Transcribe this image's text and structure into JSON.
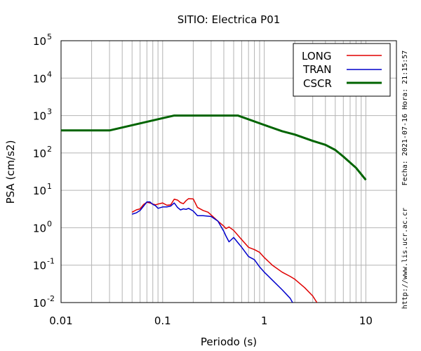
{
  "chart_data": {
    "type": "line",
    "title": "SITIO: Electrica P01",
    "xlabel": "Periodo (s)",
    "ylabel": "PSA (cm/s2)",
    "xscale": "log",
    "yscale": "log",
    "xlim": [
      0.01,
      20
    ],
    "ylim": [
      0.01,
      100000
    ],
    "xticks": [
      {
        "value": 0.01,
        "label": "0.01"
      },
      {
        "value": 0.1,
        "label": "0.1"
      },
      {
        "value": 1,
        "label": "1"
      },
      {
        "value": 10,
        "label": "10"
      }
    ],
    "yticks": [
      {
        "value": 0.01,
        "base": "10",
        "exp": "-2"
      },
      {
        "value": 0.1,
        "base": "10",
        "exp": "-1"
      },
      {
        "value": 1,
        "base": "10",
        "exp": "0"
      },
      {
        "value": 10,
        "base": "10",
        "exp": "1"
      },
      {
        "value": 100,
        "base": "10",
        "exp": "2"
      },
      {
        "value": 1000,
        "base": "10",
        "exp": "3"
      },
      {
        "value": 10000,
        "base": "10",
        "exp": "4"
      },
      {
        "value": 100000,
        "base": "10",
        "exp": "5"
      }
    ],
    "grid": true,
    "legend_position": "top-right",
    "series": [
      {
        "name": "LONG",
        "color": "#e00000",
        "line_width": 1.5,
        "points": [
          [
            0.05,
            2.6
          ],
          [
            0.055,
            3.0
          ],
          [
            0.06,
            3.2
          ],
          [
            0.065,
            4.2
          ],
          [
            0.07,
            4.8
          ],
          [
            0.075,
            4.6
          ],
          [
            0.08,
            4.3
          ],
          [
            0.085,
            4.1
          ],
          [
            0.09,
            4.3
          ],
          [
            0.1,
            4.6
          ],
          [
            0.11,
            4.0
          ],
          [
            0.12,
            4.1
          ],
          [
            0.13,
            5.8
          ],
          [
            0.14,
            5.5
          ],
          [
            0.15,
            4.7
          ],
          [
            0.16,
            4.4
          ],
          [
            0.17,
            5.3
          ],
          [
            0.18,
            6.0
          ],
          [
            0.2,
            5.9
          ],
          [
            0.22,
            3.5
          ],
          [
            0.25,
            2.9
          ],
          [
            0.28,
            2.6
          ],
          [
            0.3,
            2.2
          ],
          [
            0.35,
            1.5
          ],
          [
            0.4,
            1.1
          ],
          [
            0.42,
            0.95
          ],
          [
            0.45,
            1.05
          ],
          [
            0.5,
            0.85
          ],
          [
            0.6,
            0.48
          ],
          [
            0.7,
            0.3
          ],
          [
            0.8,
            0.26
          ],
          [
            0.9,
            0.22
          ],
          [
            1.0,
            0.16
          ],
          [
            1.2,
            0.1
          ],
          [
            1.5,
            0.065
          ],
          [
            1.8,
            0.05
          ],
          [
            2.0,
            0.042
          ],
          [
            2.5,
            0.025
          ],
          [
            3.0,
            0.015
          ],
          [
            3.3,
            0.01
          ]
        ]
      },
      {
        "name": "TRAN",
        "color": "#0000cc",
        "line_width": 1.5,
        "points": [
          [
            0.05,
            2.3
          ],
          [
            0.055,
            2.5
          ],
          [
            0.06,
            2.9
          ],
          [
            0.065,
            3.8
          ],
          [
            0.07,
            4.9
          ],
          [
            0.075,
            4.9
          ],
          [
            0.08,
            4.2
          ],
          [
            0.085,
            3.9
          ],
          [
            0.09,
            3.3
          ],
          [
            0.1,
            3.6
          ],
          [
            0.11,
            3.6
          ],
          [
            0.12,
            3.8
          ],
          [
            0.13,
            4.6
          ],
          [
            0.14,
            3.5
          ],
          [
            0.15,
            3.0
          ],
          [
            0.16,
            3.2
          ],
          [
            0.17,
            3.1
          ],
          [
            0.18,
            3.3
          ],
          [
            0.2,
            2.8
          ],
          [
            0.22,
            2.1
          ],
          [
            0.25,
            2.1
          ],
          [
            0.3,
            2.0
          ],
          [
            0.35,
            1.5
          ],
          [
            0.4,
            0.8
          ],
          [
            0.42,
            0.6
          ],
          [
            0.45,
            0.42
          ],
          [
            0.5,
            0.55
          ],
          [
            0.55,
            0.4
          ],
          [
            0.6,
            0.3
          ],
          [
            0.7,
            0.17
          ],
          [
            0.8,
            0.14
          ],
          [
            0.9,
            0.09
          ],
          [
            1.0,
            0.065
          ],
          [
            1.2,
            0.04
          ],
          [
            1.5,
            0.022
          ],
          [
            1.8,
            0.013
          ],
          [
            1.9,
            0.01
          ]
        ]
      },
      {
        "name": "CSCR",
        "color": "#006400",
        "line_width": 3,
        "points": [
          [
            0.01,
            400
          ],
          [
            0.03,
            400
          ],
          [
            0.1,
            850
          ],
          [
            0.13,
            1000
          ],
          [
            0.55,
            1000
          ],
          [
            1.0,
            560
          ],
          [
            1.5,
            380
          ],
          [
            2.0,
            310
          ],
          [
            3.0,
            210
          ],
          [
            4.0,
            165
          ],
          [
            5.0,
            120
          ],
          [
            6.0,
            80
          ],
          [
            8.0,
            40
          ],
          [
            10.0,
            19
          ]
        ]
      }
    ]
  },
  "side_notes": {
    "date_time": "Fecha: 2021-07-16 Hora: 21:15:57",
    "url": "http://www.lis.ucr.ac.cr"
  }
}
